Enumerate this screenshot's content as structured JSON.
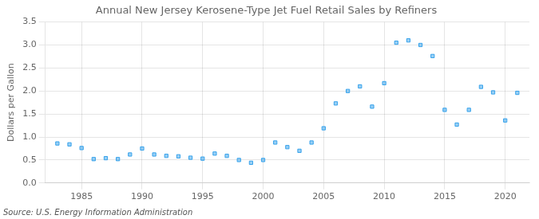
{
  "chart_data": {
    "type": "scatter",
    "title": "Annual New Jersey Kerosene-Type Jet Fuel Retail Sales by Refiners",
    "y_label": "Dollars per Gallon",
    "annotations": [
      "Source: U.S. Energy Information Administration"
    ],
    "x": [
      1983,
      1984,
      1985,
      1986,
      1987,
      1988,
      1989,
      1990,
      1991,
      1992,
      1993,
      1994,
      1995,
      1996,
      1997,
      1998,
      1999,
      2000,
      2001,
      2002,
      2003,
      2004,
      2005,
      2006,
      2007,
      2008,
      2009,
      2010,
      2011,
      2012,
      2013,
      2014,
      2015,
      2016,
      2017,
      2018,
      2019,
      2020,
      2021
    ],
    "values": [
      0.86,
      0.84,
      0.76,
      0.52,
      0.54,
      0.52,
      0.62,
      0.75,
      0.62,
      0.59,
      0.58,
      0.55,
      0.53,
      0.64,
      0.59,
      0.5,
      0.44,
      0.5,
      0.88,
      0.78,
      0.7,
      0.88,
      1.19,
      1.73,
      2.0,
      2.1,
      1.66,
      2.17,
      3.05,
      3.1,
      3.0,
      2.76,
      1.59,
      1.27,
      1.59,
      2.09,
      1.97,
      1.36,
      1.96
    ],
    "xlim": [
      1982,
      2022
    ],
    "xticks": [
      1985,
      1990,
      1995,
      2000,
      2005,
      2010,
      2015,
      2020
    ],
    "ylim": [
      0.0,
      3.5
    ],
    "yticks": [
      {
        "value": 0,
        "label": "0.0"
      },
      0.5,
      {
        "value": 1,
        "label": "1.0"
      },
      1.5,
      {
        "value": 2,
        "label": "2.0"
      },
      2.5,
      {
        "value": 3,
        "label": "3.0"
      },
      3.5
    ],
    "marker": "square",
    "grid": true
  }
}
